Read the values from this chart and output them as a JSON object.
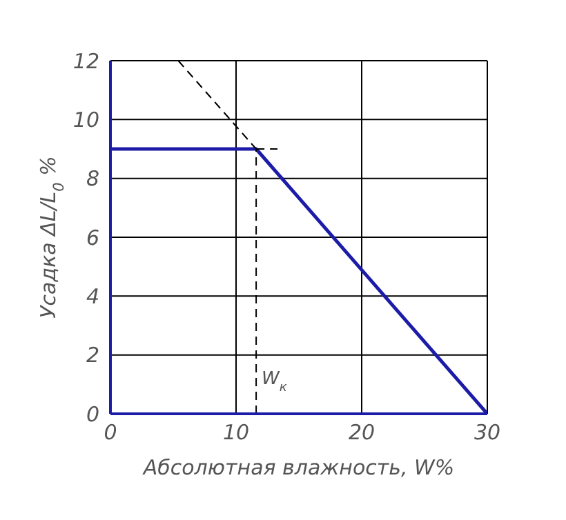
{
  "chart_data": {
    "type": "line",
    "xlabel": "Абсолютная влажность, W%",
    "ylabel": "Усадка ΔL/L$_{0}$ %",
    "series": [
      {
        "color": "#1c1ca8",
        "x": [
          0,
          11.6,
          30
        ],
        "values": [
          9,
          9,
          0
        ],
        "line_style": "solid"
      },
      {
        "color": "#000000",
        "x": [
          5.4,
          11.6
        ],
        "values": [
          12,
          9
        ],
        "line_style": "dashed"
      },
      {
        "color": "#000000",
        "x": [
          11.6,
          13.3
        ],
        "values": [
          9,
          9
        ],
        "line_style": "dashed"
      },
      {
        "color": "#000000",
        "x": [
          11.6,
          11.6
        ],
        "values": [
          0,
          9
        ],
        "line_style": "dashed"
      }
    ],
    "annotations": [
      {
        "text": "W$_{к}$",
        "x": 11.6,
        "y": 1
      }
    ],
    "xlim": [
      0,
      30
    ],
    "xticks": [
      0,
      10,
      20,
      30
    ],
    "ylim": [
      0,
      12
    ],
    "yticks": [
      0,
      2,
      4,
      6,
      8,
      10,
      12
    ],
    "grid": true,
    "marker": "none"
  }
}
